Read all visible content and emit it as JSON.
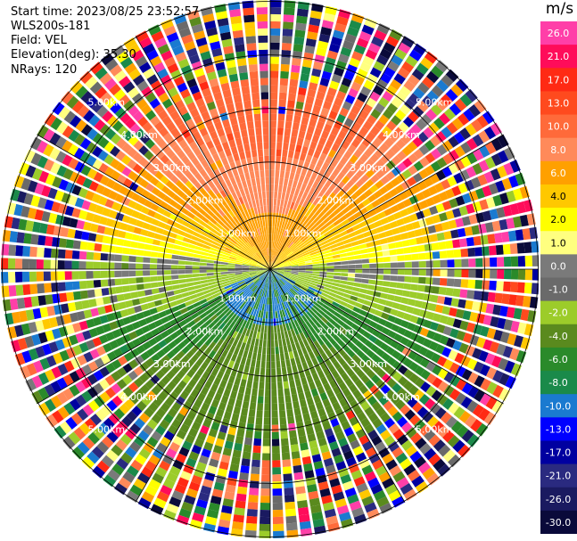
{
  "header": {
    "start_time": "Start time: 2023/08/25 23:52:57",
    "instrument": "WLS200s-181",
    "field": "Field: VEL",
    "elevation": "Elevation(deg): 35.30",
    "nrays": "NRays: 120"
  },
  "colorbar": {
    "unit": "m/s",
    "ticks": [
      "26.0",
      "21.0",
      "17.0",
      "13.0",
      "10.0",
      "8.0",
      "6.0",
      "4.0",
      "2.0",
      "1.0",
      "0.0",
      "-1.0",
      "-2.0",
      "-4.0",
      "-6.0",
      "-8.0",
      "-10.0",
      "-13.0",
      "-17.0",
      "-21.0",
      "-26.0",
      "-30.0"
    ],
    "colors": [
      "#ff3fa8",
      "#ff0c5a",
      "#ff2a14",
      "#ff4a1e",
      "#ff6a3a",
      "#ff8a5a",
      "#ffa000",
      "#ffc800",
      "#ffff00",
      "#ffff80",
      "#7a7a7a",
      "#6a6a6a",
      "#9ccc2a",
      "#5a8a1e",
      "#2a8a2a",
      "#1a8a4a",
      "#1a7ad0",
      "#0000ff",
      "#0000a0",
      "#2a2a80",
      "#1a1a60",
      "#0a0a3a"
    ]
  },
  "chart_data": {
    "type": "ppi",
    "field": "VEL",
    "units": "m/s",
    "n_rays": 120,
    "range_rings_km": [
      1.0,
      2.0,
      3.0,
      4.0,
      5.0
    ],
    "ring_labels": [
      "1.00km",
      "2.00km",
      "3.00km",
      "4.00km",
      "5.00km"
    ],
    "max_range_km": 5.0,
    "pattern": {
      "north_sector": "positive 6-13 m/s (orange)",
      "near_east_west": "positive 1-6 m/s (yellow)",
      "south_sector": "negative -2 to -8 m/s (green)",
      "near_south": "negative -8 to -10 m/s (blue)",
      "outer_ring": "noisy, full color range"
    }
  }
}
